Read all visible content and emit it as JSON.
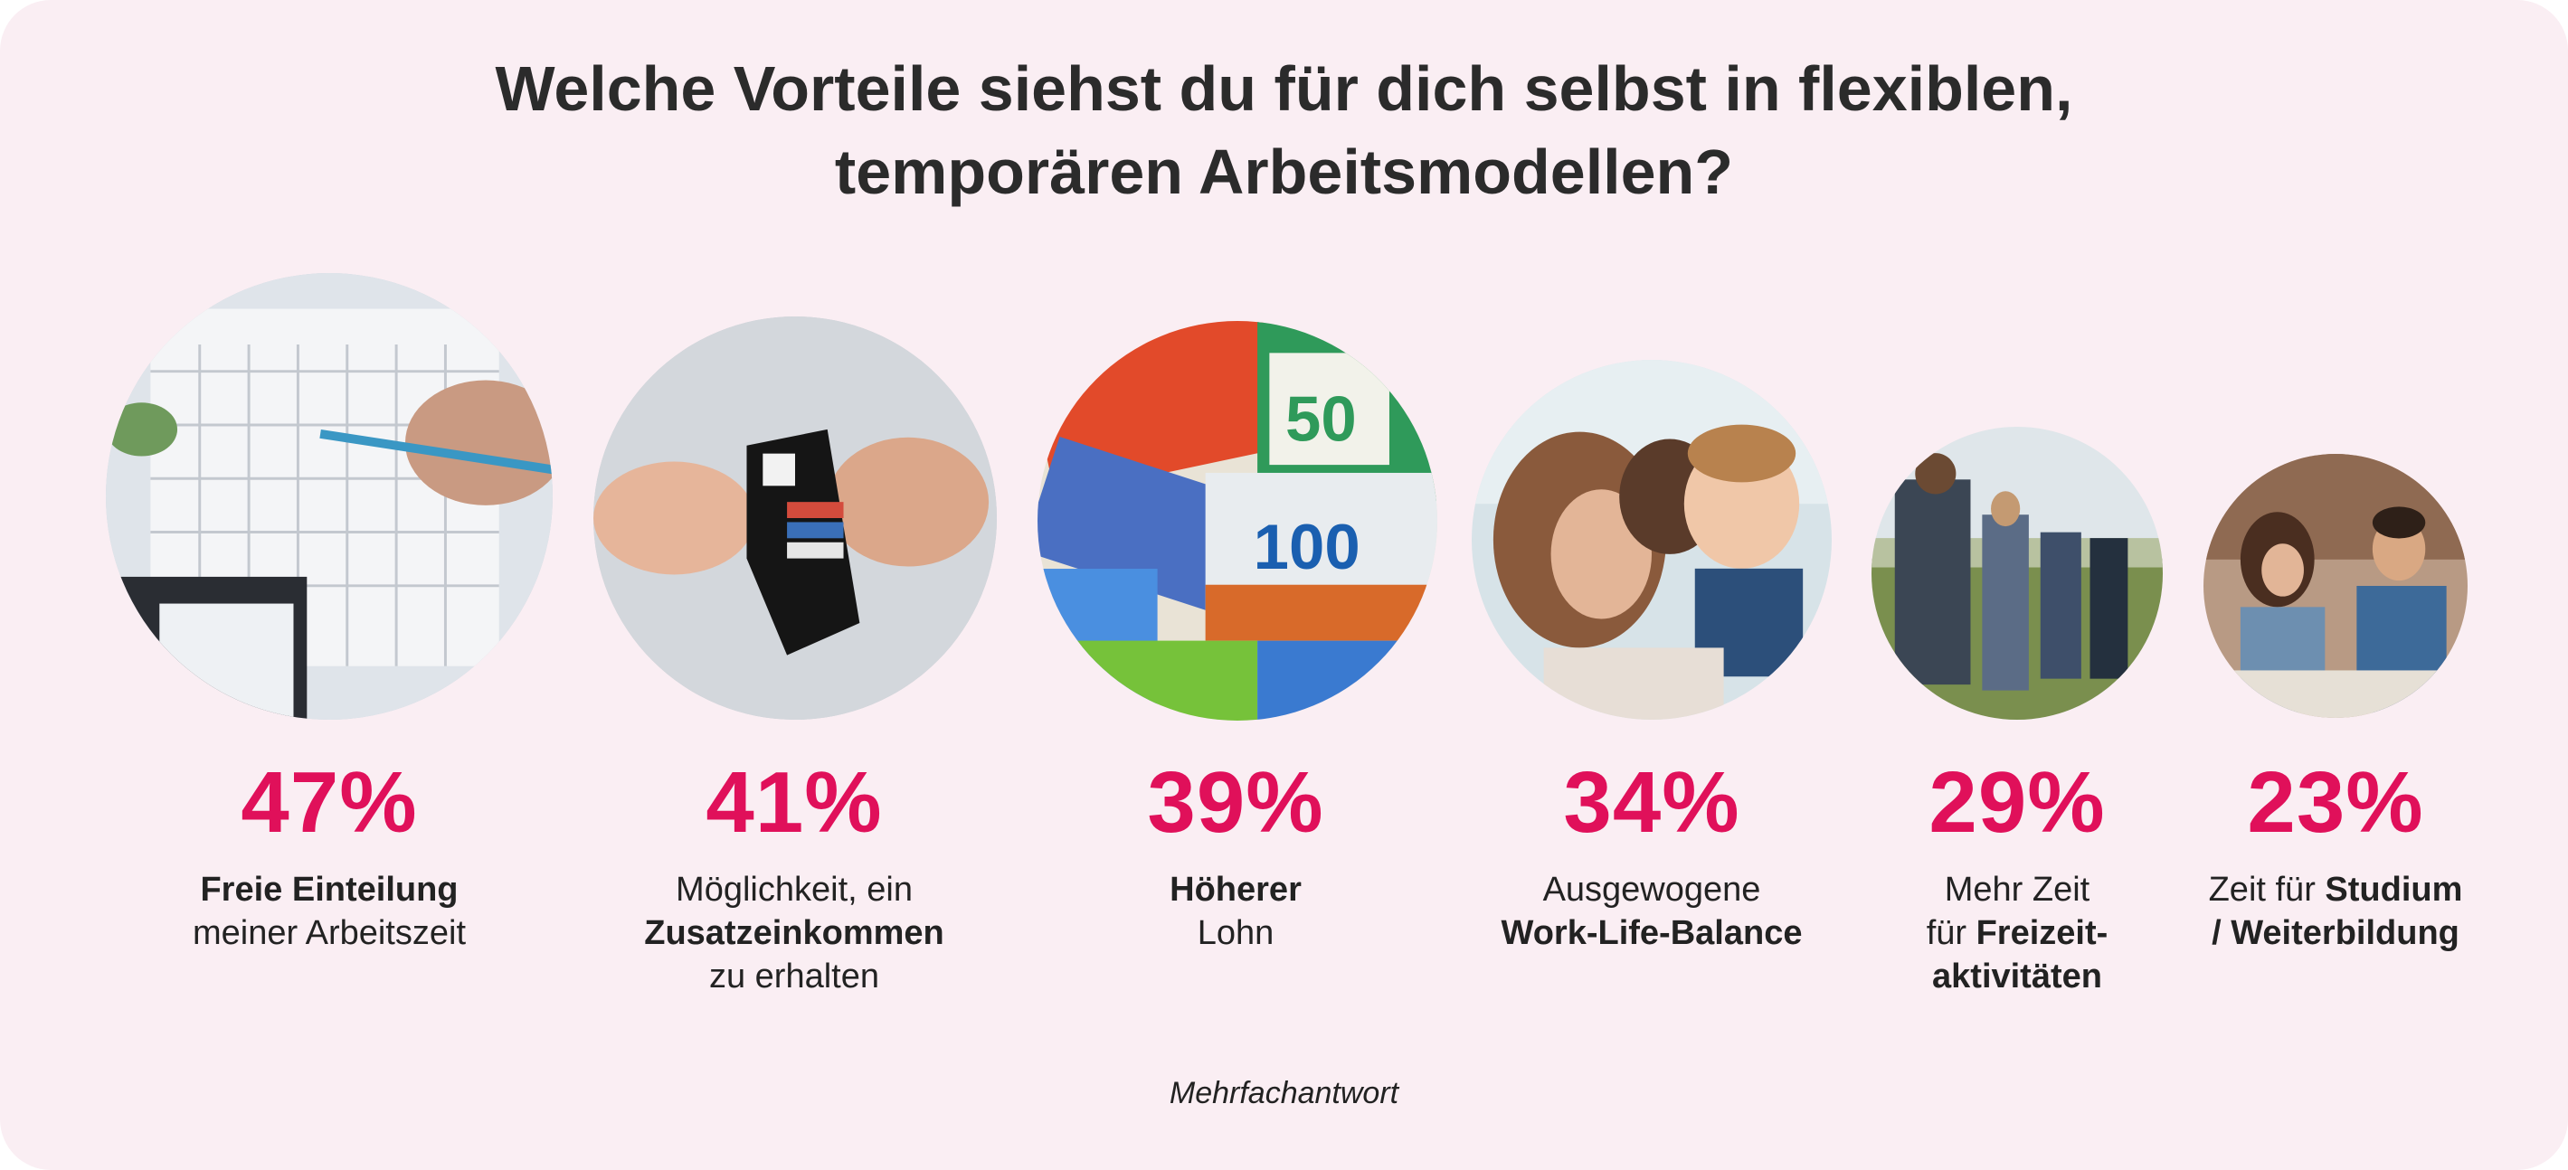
{
  "title": {
    "line1": "Welche Vorteile siehst du für dich selbst in flexiblen,",
    "line2": "temporären Arbeitsmodellen?"
  },
  "chart_data": {
    "type": "bar",
    "title": "Welche Vorteile siehst du für dich selbst in flexiblen, temporären Arbeitsmodellen?",
    "categories": [
      "Freie Einteilung meiner Arbeitszeit",
      "Möglichkeit, ein Zusatzeinkommen zu erhalten",
      "Höherer Lohn",
      "Ausgewogene Work-Life-Balance",
      "Mehr Zeit für Freizeitaktivitäten",
      "Zeit für Studium / Weiterbildung"
    ],
    "values": [
      47,
      41,
      39,
      34,
      29,
      23
    ],
    "unit": "%",
    "note": "Mehrfachantwort"
  },
  "items": [
    {
      "pct": "47%",
      "icon": "calendar-photo",
      "desc": [
        [
          {
            "t": "Freie Einteilung",
            "b": true
          }
        ],
        [
          {
            "t": "meiner Arbeitszeit",
            "b": false
          }
        ]
      ]
    },
    {
      "pct": "41%",
      "icon": "wallet-photo",
      "desc": [
        [
          {
            "t": "Möglichkeit, ein",
            "b": false
          }
        ],
        [
          {
            "t": "Zusatzeinkommen",
            "b": true
          }
        ],
        [
          {
            "t": "zu erhalten",
            "b": false
          }
        ]
      ]
    },
    {
      "pct": "39%",
      "icon": "banknotes-photo",
      "desc": [
        [
          {
            "t": "Höherer",
            "b": true
          }
        ],
        [
          {
            "t": "Lohn",
            "b": false
          }
        ]
      ]
    },
    {
      "pct": "34%",
      "icon": "family-photo",
      "desc": [
        [
          {
            "t": "Ausgewogene",
            "b": false
          }
        ],
        [
          {
            "t": "Work-Life-Balance",
            "b": true
          }
        ]
      ]
    },
    {
      "pct": "29%",
      "icon": "hikers-photo",
      "desc": [
        [
          {
            "t": "Mehr Zeit",
            "b": false
          }
        ],
        [
          {
            "t": "für ",
            "b": false
          },
          {
            "t": "Freizeit-",
            "b": true
          }
        ],
        [
          {
            "t": "aktivitäten",
            "b": true
          }
        ]
      ]
    },
    {
      "pct": "23%",
      "icon": "students-photo",
      "desc": [
        [
          {
            "t": "Zeit für ",
            "b": false
          },
          {
            "t": "Studium",
            "b": true
          }
        ],
        [
          {
            "t": "/ Weiterbildung",
            "b": true
          }
        ]
      ]
    }
  ],
  "footnote": "Mehrfachantwort",
  "colors": {
    "background": "#faeef3",
    "accent": "#e0105a",
    "text": "#2b2b2b"
  }
}
